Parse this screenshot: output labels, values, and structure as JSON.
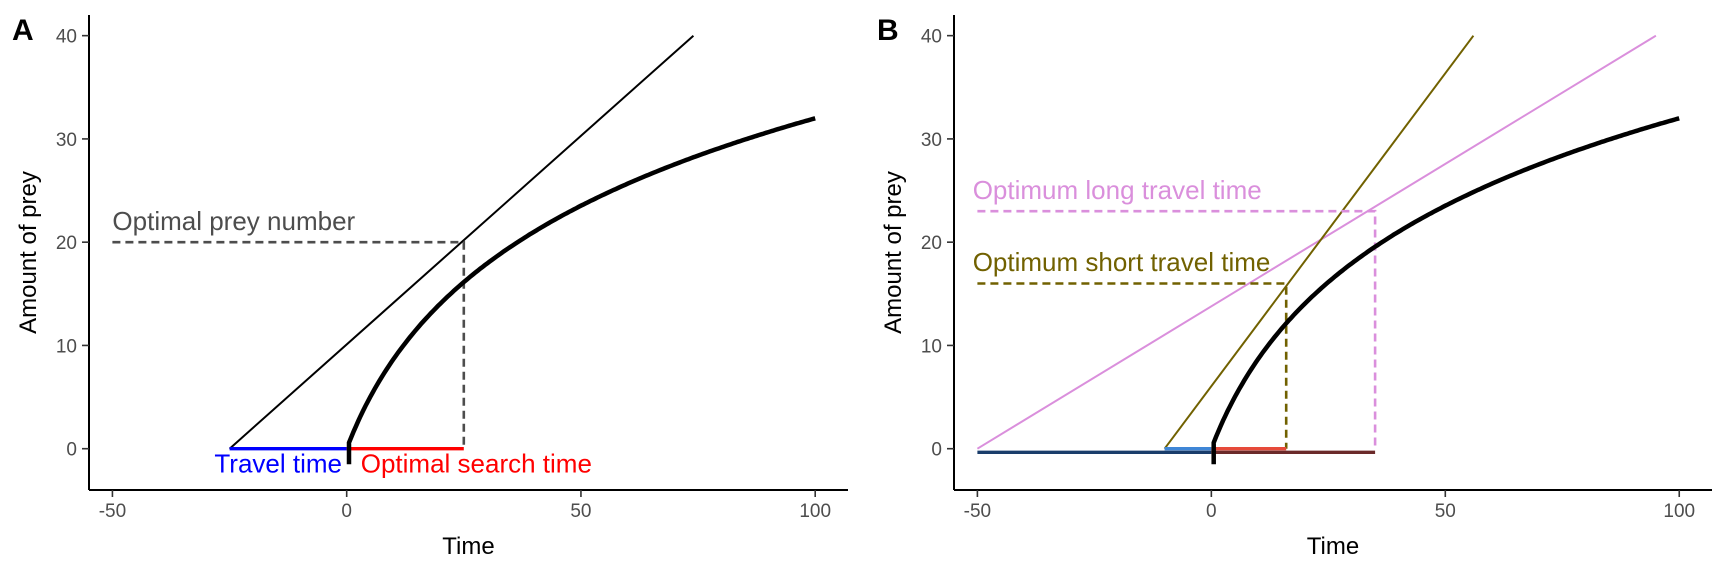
{
  "chart_data": [
    {
      "type": "line",
      "panel_label": "A",
      "xlabel": "Time",
      "ylabel": "Amount of prey",
      "xlim": [
        -55,
        107
      ],
      "ylim": [
        -4,
        42
      ],
      "xticks": [
        -50,
        0,
        50,
        100
      ],
      "yticks": [
        0,
        10,
        20,
        30,
        40
      ],
      "grid": false,
      "gain_curve": {
        "x_start": 0.5,
        "x_end": 100,
        "color": "#000000"
      },
      "lines": [
        {
          "kind": "tangent",
          "points": [
            [
              -25,
              0
            ],
            [
              74,
              40
            ]
          ],
          "color": "#000000",
          "dash": false
        },
        {
          "kind": "optimal-prey-number",
          "points": [
            [
              -50,
              20
            ],
            [
              25,
              20
            ],
            [
              25,
              0
            ]
          ],
          "color": "#4d4d4d",
          "dash": true
        },
        {
          "kind": "travel-time",
          "points": [
            [
              -25,
              0
            ],
            [
              0,
              0
            ]
          ],
          "color": "#0000ff",
          "dash": false
        },
        {
          "kind": "search-time",
          "points": [
            [
              0,
              0
            ],
            [
              25,
              0
            ]
          ],
          "color": "#ff0000",
          "dash": false
        }
      ],
      "annotations": [
        {
          "text": "Optimal prey number",
          "x": -50,
          "y": 21.2,
          "anchor": "start",
          "color": "#4d4d4d"
        },
        {
          "text": "Travel time",
          "x": -1,
          "y": -2.3,
          "anchor": "end",
          "color": "#0000ff"
        },
        {
          "text": "Optimal search time",
          "x": 3,
          "y": -2.3,
          "anchor": "start",
          "color": "#ff0000"
        }
      ]
    },
    {
      "type": "line",
      "panel_label": "B",
      "xlabel": "Time",
      "ylabel": "Amount of prey",
      "xlim": [
        -55,
        107
      ],
      "ylim": [
        -4,
        42
      ],
      "xticks": [
        -50,
        0,
        50,
        100
      ],
      "yticks": [
        0,
        10,
        20,
        30,
        40
      ],
      "grid": false,
      "gain_curve": {
        "x_start": 0.5,
        "x_end": 100,
        "color": "#000000"
      },
      "lines": [
        {
          "kind": "tangent-long",
          "points": [
            [
              -50,
              0
            ],
            [
              95,
              40
            ]
          ],
          "color": "#da8fdc",
          "dash": false
        },
        {
          "kind": "tangent-short",
          "points": [
            [
              -10,
              0
            ],
            [
              56,
              40
            ]
          ],
          "color": "#716100",
          "dash": false
        },
        {
          "kind": "optimum-long",
          "points": [
            [
              -50,
              23
            ],
            [
              35,
              23
            ],
            [
              35,
              0
            ]
          ],
          "color": "#da8fdc",
          "dash": true
        },
        {
          "kind": "optimum-short",
          "points": [
            [
              -50,
              16
            ],
            [
              16,
              16
            ],
            [
              16,
              0
            ]
          ],
          "color": "#716100",
          "dash": true
        },
        {
          "kind": "long-travel",
          "points": [
            [
              -50,
              -0.35
            ],
            [
              0,
              -0.35
            ]
          ],
          "color": "#1a3d6b",
          "dash": false
        },
        {
          "kind": "long-search",
          "points": [
            [
              0,
              -0.35
            ],
            [
              35,
              -0.35
            ]
          ],
          "color": "#6b2a2a",
          "dash": false
        },
        {
          "kind": "short-travel",
          "points": [
            [
              -10,
              0
            ],
            [
              0,
              0
            ]
          ],
          "color": "#3f86d6",
          "dash": false
        },
        {
          "kind": "short-search",
          "points": [
            [
              0,
              0
            ],
            [
              16,
              0
            ]
          ],
          "color": "#e64a3a",
          "dash": false
        }
      ],
      "annotations": [
        {
          "text": "Optimum long travel time",
          "x": -51,
          "y": 24.2,
          "anchor": "start",
          "color": "#da8fdc"
        },
        {
          "text": "Optimum short travel time",
          "x": -51,
          "y": 17.2,
          "anchor": "start",
          "color": "#716100"
        }
      ]
    }
  ]
}
